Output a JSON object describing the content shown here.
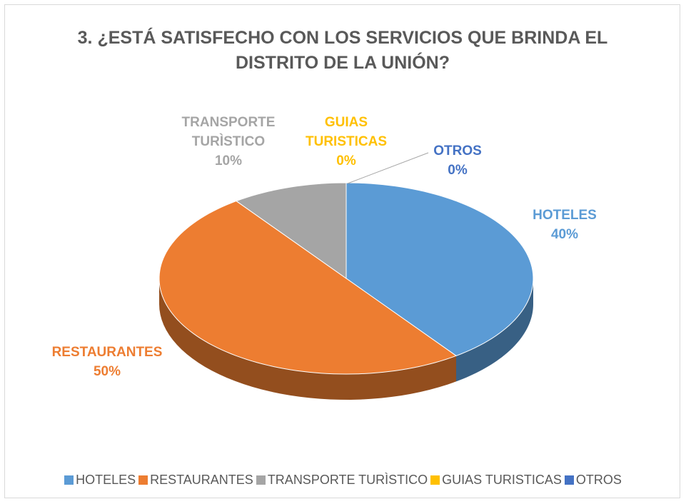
{
  "chart_data": {
    "type": "pie",
    "title": "3.   ¿ESTÁ SATISFECHO CON LOS SERVICIOS QUE BRINDA EL DISTRITO DE LA UNIÓN?",
    "categories": [
      "HOTELES",
      "RESTAURANTES",
      "TRANSPORTE TURÌSTICO",
      "GUIAS TURISTICAS",
      "OTROS"
    ],
    "values": [
      40,
      50,
      10,
      0,
      0
    ],
    "value_labels": [
      "40%",
      "50%",
      "10%",
      "0%",
      "0%"
    ],
    "colors": [
      "#5b9bd5",
      "#ed7d31",
      "#a5a5a5",
      "#ffc000",
      "#4472c4"
    ],
    "legend": "bottom"
  }
}
